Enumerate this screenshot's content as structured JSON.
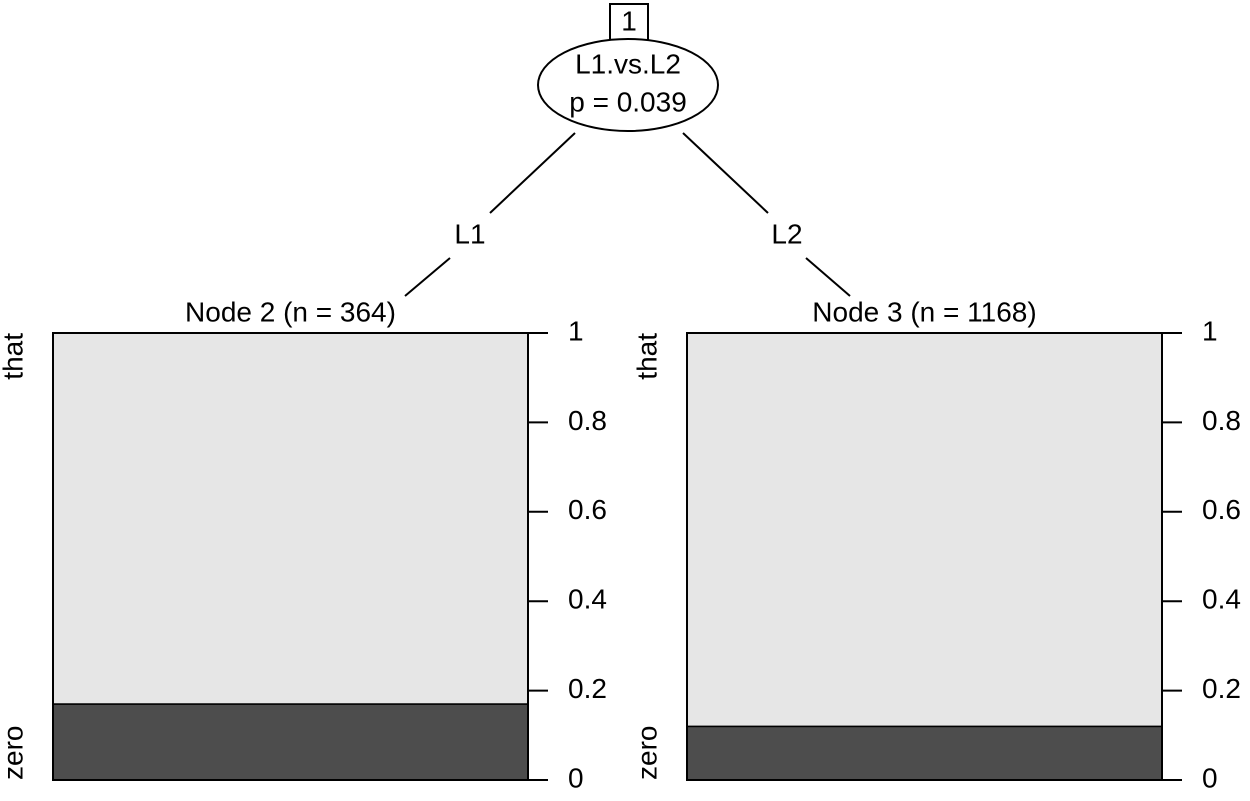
{
  "tree": {
    "node_id": "1",
    "variable": "L1.vs.L2",
    "p_label": "p = 0.039",
    "edges": [
      "L1",
      "L2"
    ]
  },
  "chart_data": [
    {
      "type": "bar",
      "title": "Node 2 (n = 364)",
      "stacked": true,
      "series": [
        {
          "name": "zero",
          "color": "#4d4d4d",
          "values": [
            0.17
          ]
        },
        {
          "name": "that",
          "color": "#e6e6e6",
          "values": [
            0.83
          ]
        }
      ],
      "ylim": [
        0,
        1
      ],
      "yticks": [
        0,
        0.2,
        0.4,
        0.6,
        0.8,
        1
      ]
    },
    {
      "type": "bar",
      "title": "Node 3 (n = 1168)",
      "stacked": true,
      "series": [
        {
          "name": "zero",
          "color": "#4d4d4d",
          "values": [
            0.12
          ]
        },
        {
          "name": "that",
          "color": "#e6e6e6",
          "values": [
            0.88
          ]
        }
      ],
      "ylim": [
        0,
        1
      ],
      "yticks": [
        0,
        0.2,
        0.4,
        0.6,
        0.8,
        1
      ]
    }
  ]
}
